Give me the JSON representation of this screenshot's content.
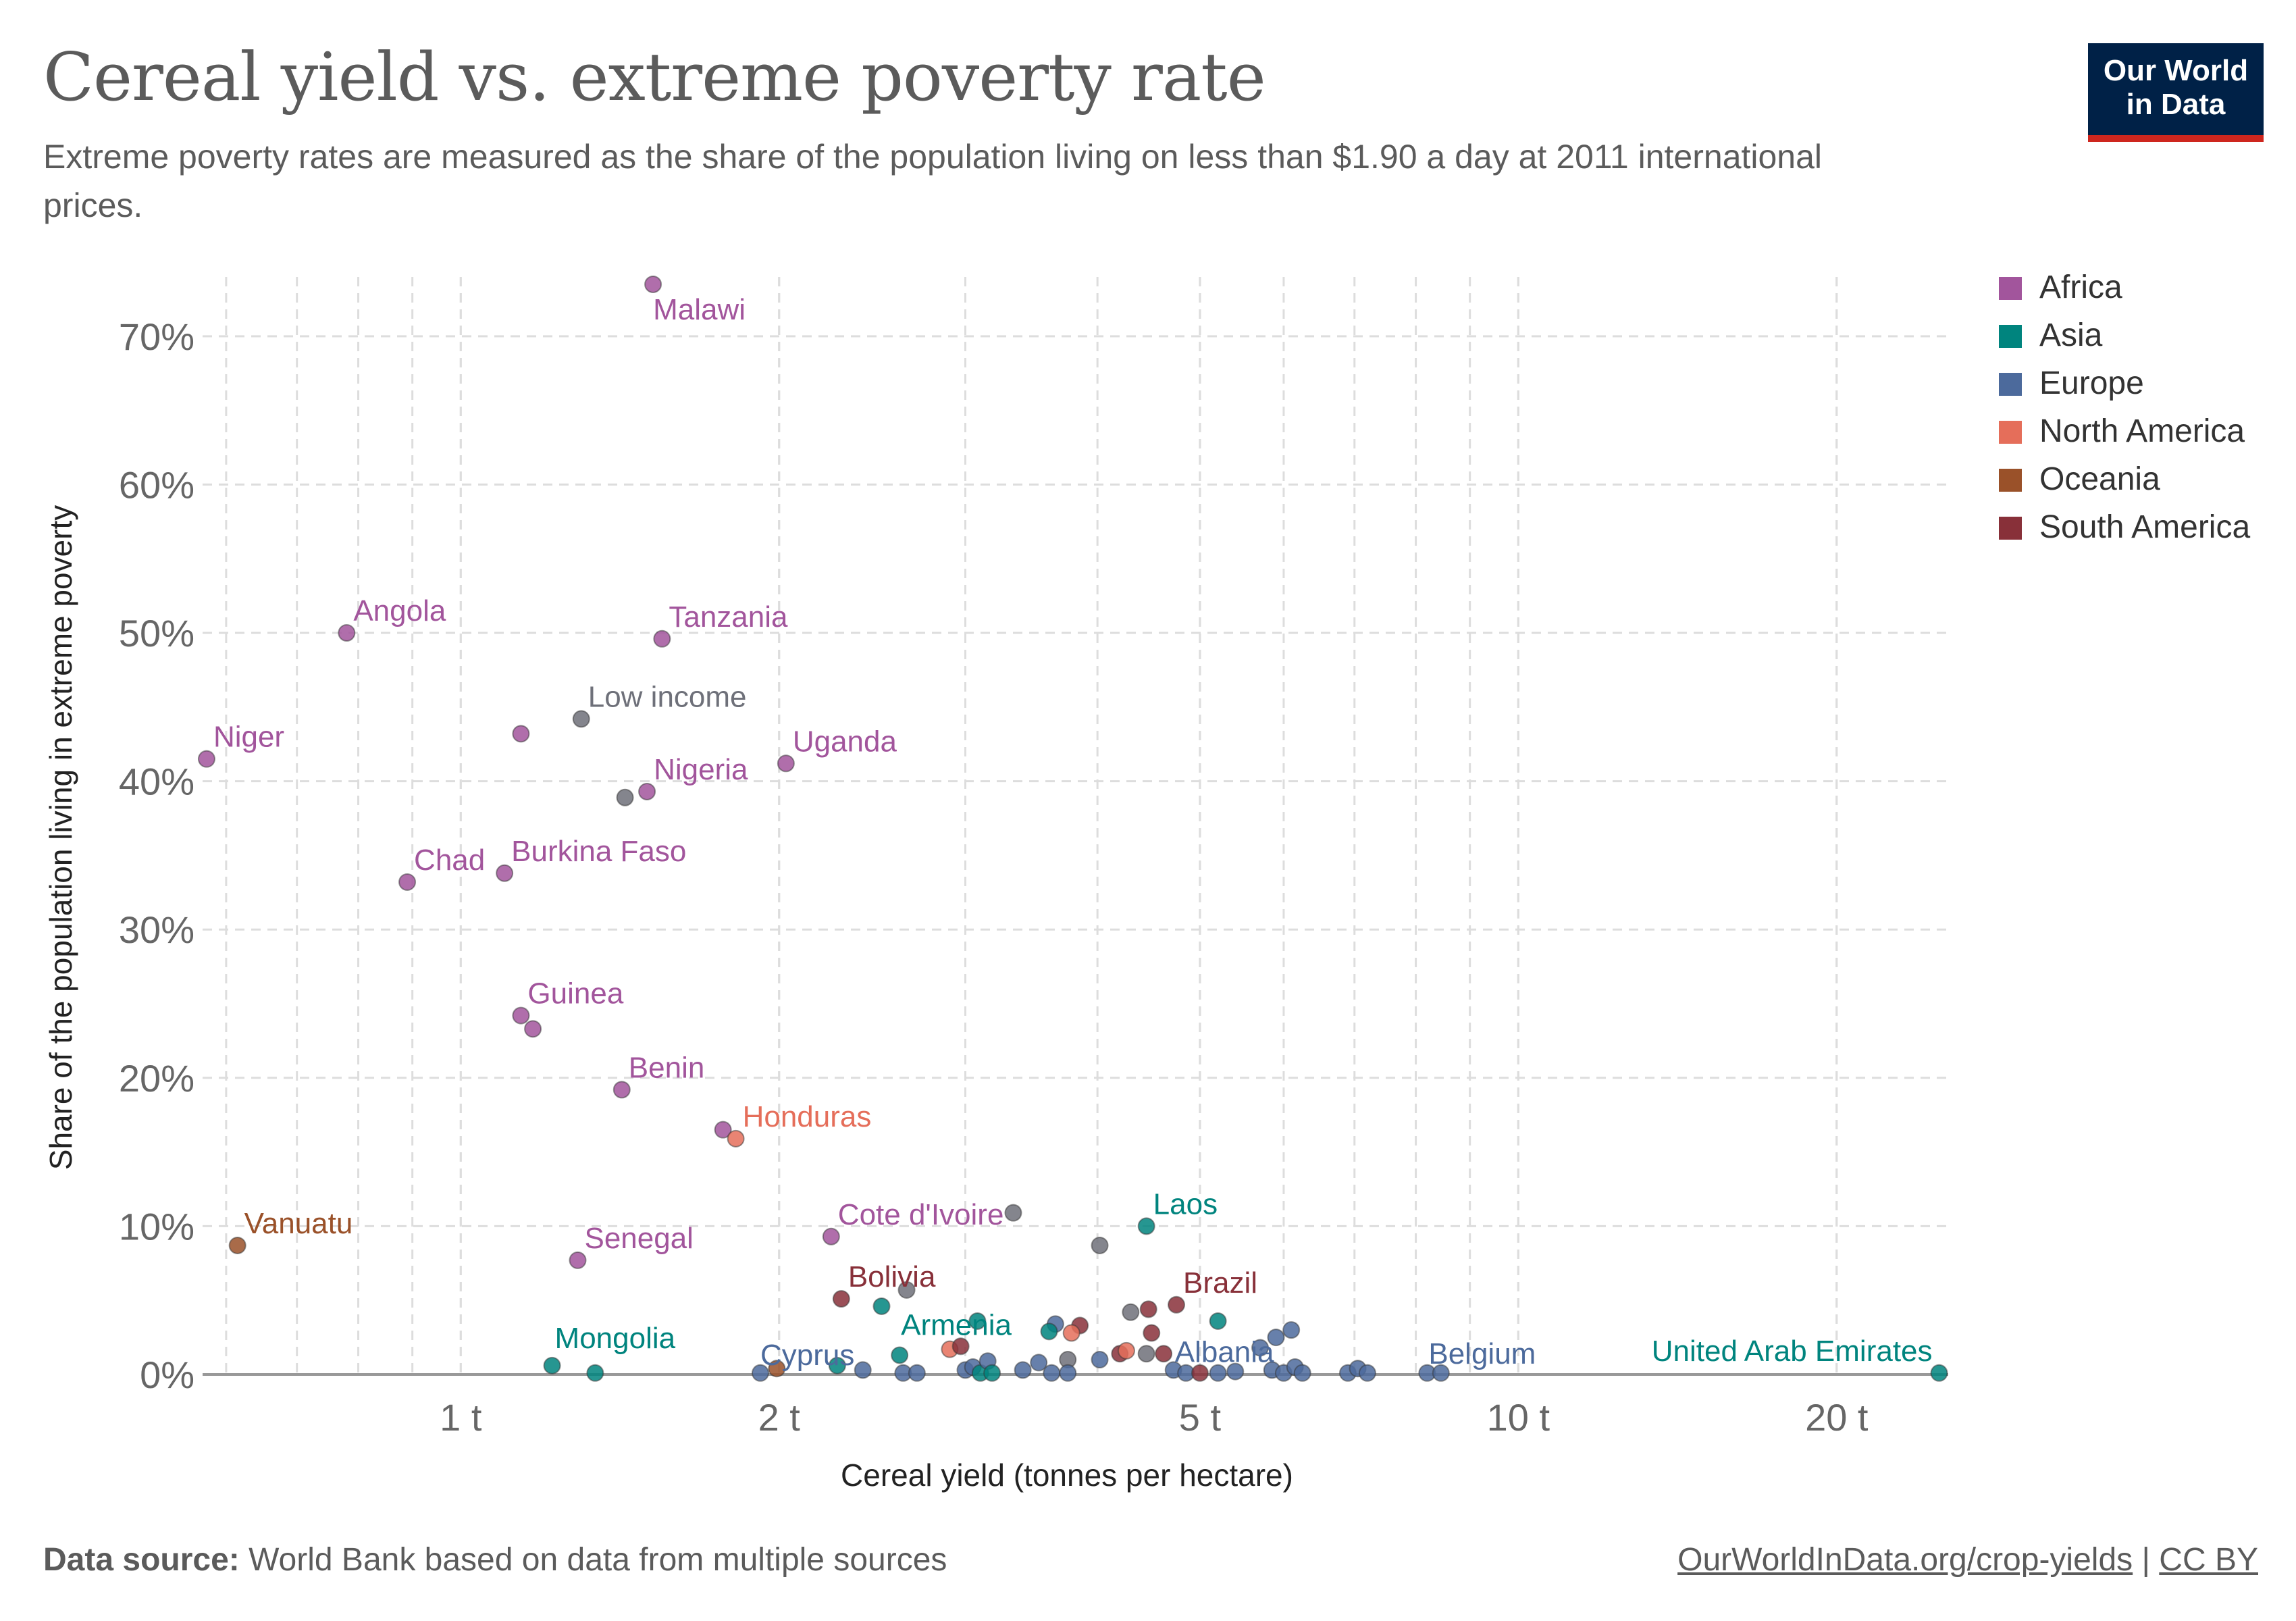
{
  "header": {
    "title": "Cereal yield vs. extreme poverty rate",
    "subtitle": "Extreme poverty rates are measured as the share of the population living on less than $1.90 a day at 2011 international prices.",
    "logo_line1": "Our World",
    "logo_line2": "in Data"
  },
  "footer": {
    "source_label": "Data source:",
    "source_text": "World Bank based on data from multiple sources",
    "link": "OurWorldInData.org/crop-yields",
    "separator": " | ",
    "license": "CC BY"
  },
  "chart_data": {
    "type": "scatter",
    "xlabel": "Cereal yield (tonnes per hectare)",
    "ylabel": "Share of the population living in extreme poverty",
    "xscale": "log",
    "xlim": [
      0.57,
      25.5
    ],
    "ylim": [
      0,
      74
    ],
    "xticks": [
      {
        "value": 1,
        "label": "1 t"
      },
      {
        "value": 2,
        "label": "2 t"
      },
      {
        "value": 5,
        "label": "5 t"
      },
      {
        "value": 10,
        "label": "10 t"
      },
      {
        "value": 20,
        "label": "20 t"
      }
    ],
    "yticks": [
      {
        "value": 0,
        "label": "0%"
      },
      {
        "value": 10,
        "label": "10%"
      },
      {
        "value": 20,
        "label": "20%"
      },
      {
        "value": 30,
        "label": "30%"
      },
      {
        "value": 40,
        "label": "40%"
      },
      {
        "value": 50,
        "label": "50%"
      },
      {
        "value": 60,
        "label": "60%"
      },
      {
        "value": 70,
        "label": "70%"
      }
    ],
    "grid": true,
    "legend_position": "right",
    "colors": {
      "Africa": "#a2559c",
      "Asia": "#00847e",
      "Europe": "#4c6a9c",
      "North America": "#e56e5a",
      "Oceania": "#9a5129",
      "South America": "#883039",
      "Other": "#6e7079"
    },
    "legend": [
      "Africa",
      "Asia",
      "Europe",
      "North America",
      "Oceania",
      "South America"
    ],
    "points": [
      {
        "label": "Malawi",
        "region": "Africa",
        "x": 1.52,
        "y": 73.5
      },
      {
        "label": "Angola",
        "region": "Africa",
        "x": 0.78,
        "y": 50.0
      },
      {
        "label": "Tanzania",
        "region": "Africa",
        "x": 1.55,
        "y": 49.6
      },
      {
        "label": "Low income",
        "region": "Other",
        "x": 1.3,
        "y": 44.2
      },
      {
        "label": "",
        "region": "Africa",
        "x": 1.14,
        "y": 43.2
      },
      {
        "label": "Niger",
        "region": "Africa",
        "x": 0.575,
        "y": 41.5
      },
      {
        "label": "Uganda",
        "region": "Africa",
        "x": 2.03,
        "y": 41.2
      },
      {
        "label": "Nigeria",
        "region": "Africa",
        "x": 1.5,
        "y": 39.3
      },
      {
        "label": "",
        "region": "Other",
        "x": 1.43,
        "y": 38.9
      },
      {
        "label": "Chad",
        "region": "Africa",
        "x": 0.89,
        "y": 33.2
      },
      {
        "label": "Burkina Faso",
        "region": "Africa",
        "x": 1.1,
        "y": 33.8
      },
      {
        "label": "Guinea",
        "region": "Africa",
        "x": 1.14,
        "y": 24.2
      },
      {
        "label": "",
        "region": "Africa",
        "x": 1.17,
        "y": 23.3
      },
      {
        "label": "Benin",
        "region": "Africa",
        "x": 1.42,
        "y": 19.2
      },
      {
        "label": "",
        "region": "Africa",
        "x": 1.77,
        "y": 16.5
      },
      {
        "label": "Honduras",
        "region": "North America",
        "x": 1.82,
        "y": 15.9
      },
      {
        "label": "Vanuatu",
        "region": "Oceania",
        "x": 0.615,
        "y": 8.7
      },
      {
        "label": "Senegal",
        "region": "Africa",
        "x": 1.29,
        "y": 7.7
      },
      {
        "label": "Cote d'Ivoire",
        "region": "Africa",
        "x": 2.24,
        "y": 9.3
      },
      {
        "label": "",
        "region": "Other",
        "x": 3.33,
        "y": 10.9
      },
      {
        "label": "Laos",
        "region": "Asia",
        "x": 4.45,
        "y": 10.0
      },
      {
        "label": "",
        "region": "Other",
        "x": 4.02,
        "y": 8.7
      },
      {
        "label": "Bolivia",
        "region": "South America",
        "x": 2.29,
        "y": 5.1
      },
      {
        "label": "",
        "region": "Other",
        "x": 2.64,
        "y": 5.7
      },
      {
        "label": "",
        "region": "Asia",
        "x": 2.5,
        "y": 4.6
      },
      {
        "label": "Brazil",
        "region": "South America",
        "x": 4.75,
        "y": 4.7
      },
      {
        "label": "",
        "region": "Asia",
        "x": 5.2,
        "y": 3.6
      },
      {
        "label": "",
        "region": "South America",
        "x": 4.47,
        "y": 4.4
      },
      {
        "label": "",
        "region": "Other",
        "x": 4.3,
        "y": 4.2
      },
      {
        "label": "",
        "region": "Asia",
        "x": 3.08,
        "y": 3.6
      },
      {
        "label": "",
        "region": "Europe",
        "x": 3.65,
        "y": 3.4
      },
      {
        "label": "",
        "region": "South America",
        "x": 3.85,
        "y": 3.3
      },
      {
        "label": "",
        "region": "Asia",
        "x": 3.6,
        "y": 2.9
      },
      {
        "label": "",
        "region": "North America",
        "x": 3.78,
        "y": 2.8
      },
      {
        "label": "",
        "region": "South America",
        "x": 4.5,
        "y": 2.8
      },
      {
        "label": "",
        "region": "Europe",
        "x": 6.1,
        "y": 3.0
      },
      {
        "label": "",
        "region": "Europe",
        "x": 5.9,
        "y": 2.5
      },
      {
        "label": "Mongolia",
        "region": "Asia",
        "x": 1.22,
        "y": 0.6
      },
      {
        "label": "",
        "region": "Asia",
        "x": 1.34,
        "y": 0.1
      },
      {
        "label": "Cyprus",
        "region": "Europe",
        "x": 1.92,
        "y": 0.1
      },
      {
        "label": "",
        "region": "Oceania",
        "x": 1.99,
        "y": 0.4
      },
      {
        "label": "",
        "region": "Asia",
        "x": 2.27,
        "y": 0.6
      },
      {
        "label": "",
        "region": "Europe",
        "x": 2.4,
        "y": 0.3
      },
      {
        "label": "Armenia",
        "region": "Asia",
        "x": 2.6,
        "y": 1.3
      },
      {
        "label": "",
        "region": "Europe",
        "x": 2.62,
        "y": 0.1
      },
      {
        "label": "",
        "region": "Europe",
        "x": 2.7,
        "y": 0.1
      },
      {
        "label": "",
        "region": "North America",
        "x": 2.9,
        "y": 1.7
      },
      {
        "label": "",
        "region": "South America",
        "x": 2.97,
        "y": 1.9
      },
      {
        "label": "",
        "region": "Europe",
        "x": 3.0,
        "y": 0.3
      },
      {
        "label": "",
        "region": "Europe",
        "x": 3.05,
        "y": 0.5
      },
      {
        "label": "",
        "region": "Asia",
        "x": 3.1,
        "y": 0.1
      },
      {
        "label": "",
        "region": "Europe",
        "x": 3.15,
        "y": 0.9
      },
      {
        "label": "",
        "region": "Asia",
        "x": 3.18,
        "y": 0.1
      },
      {
        "label": "",
        "region": "Europe",
        "x": 3.4,
        "y": 0.3
      },
      {
        "label": "",
        "region": "Europe",
        "x": 3.52,
        "y": 0.8
      },
      {
        "label": "",
        "region": "Europe",
        "x": 3.62,
        "y": 0.1
      },
      {
        "label": "",
        "region": "Other",
        "x": 3.75,
        "y": 1.0
      },
      {
        "label": "",
        "region": "Europe",
        "x": 3.75,
        "y": 0.1
      },
      {
        "label": "",
        "region": "Europe",
        "x": 4.02,
        "y": 1.0
      },
      {
        "label": "",
        "region": "South America",
        "x": 4.2,
        "y": 1.4
      },
      {
        "label": "",
        "region": "North America",
        "x": 4.26,
        "y": 1.6
      },
      {
        "label": "",
        "region": "Other",
        "x": 4.45,
        "y": 1.4
      },
      {
        "label": "",
        "region": "South America",
        "x": 4.62,
        "y": 1.4
      },
      {
        "label": "Albania",
        "region": "Europe",
        "x": 4.72,
        "y": 0.3
      },
      {
        "label": "",
        "region": "Europe",
        "x": 4.85,
        "y": 0.1
      },
      {
        "label": "",
        "region": "South America",
        "x": 5.0,
        "y": 0.1
      },
      {
        "label": "",
        "region": "Europe",
        "x": 5.2,
        "y": 0.1
      },
      {
        "label": "",
        "region": "Europe",
        "x": 5.4,
        "y": 0.2
      },
      {
        "label": "",
        "region": "Europe",
        "x": 5.7,
        "y": 1.8
      },
      {
        "label": "",
        "region": "Europe",
        "x": 5.85,
        "y": 0.3
      },
      {
        "label": "",
        "region": "Europe",
        "x": 6.0,
        "y": 0.1
      },
      {
        "label": "",
        "region": "Europe",
        "x": 6.15,
        "y": 0.5
      },
      {
        "label": "",
        "region": "Europe",
        "x": 6.25,
        "y": 0.1
      },
      {
        "label": "",
        "region": "Europe",
        "x": 6.9,
        "y": 0.1
      },
      {
        "label": "",
        "region": "Europe",
        "x": 7.05,
        "y": 0.4
      },
      {
        "label": "",
        "region": "Europe",
        "x": 7.2,
        "y": 0.1
      },
      {
        "label": "Belgium",
        "region": "Europe",
        "x": 8.2,
        "y": 0.1
      },
      {
        "label": "",
        "region": "Europe",
        "x": 8.45,
        "y": 0.1
      },
      {
        "label": "United Arab Emirates",
        "region": "Asia",
        "x": 25.0,
        "y": 0.1
      }
    ]
  }
}
